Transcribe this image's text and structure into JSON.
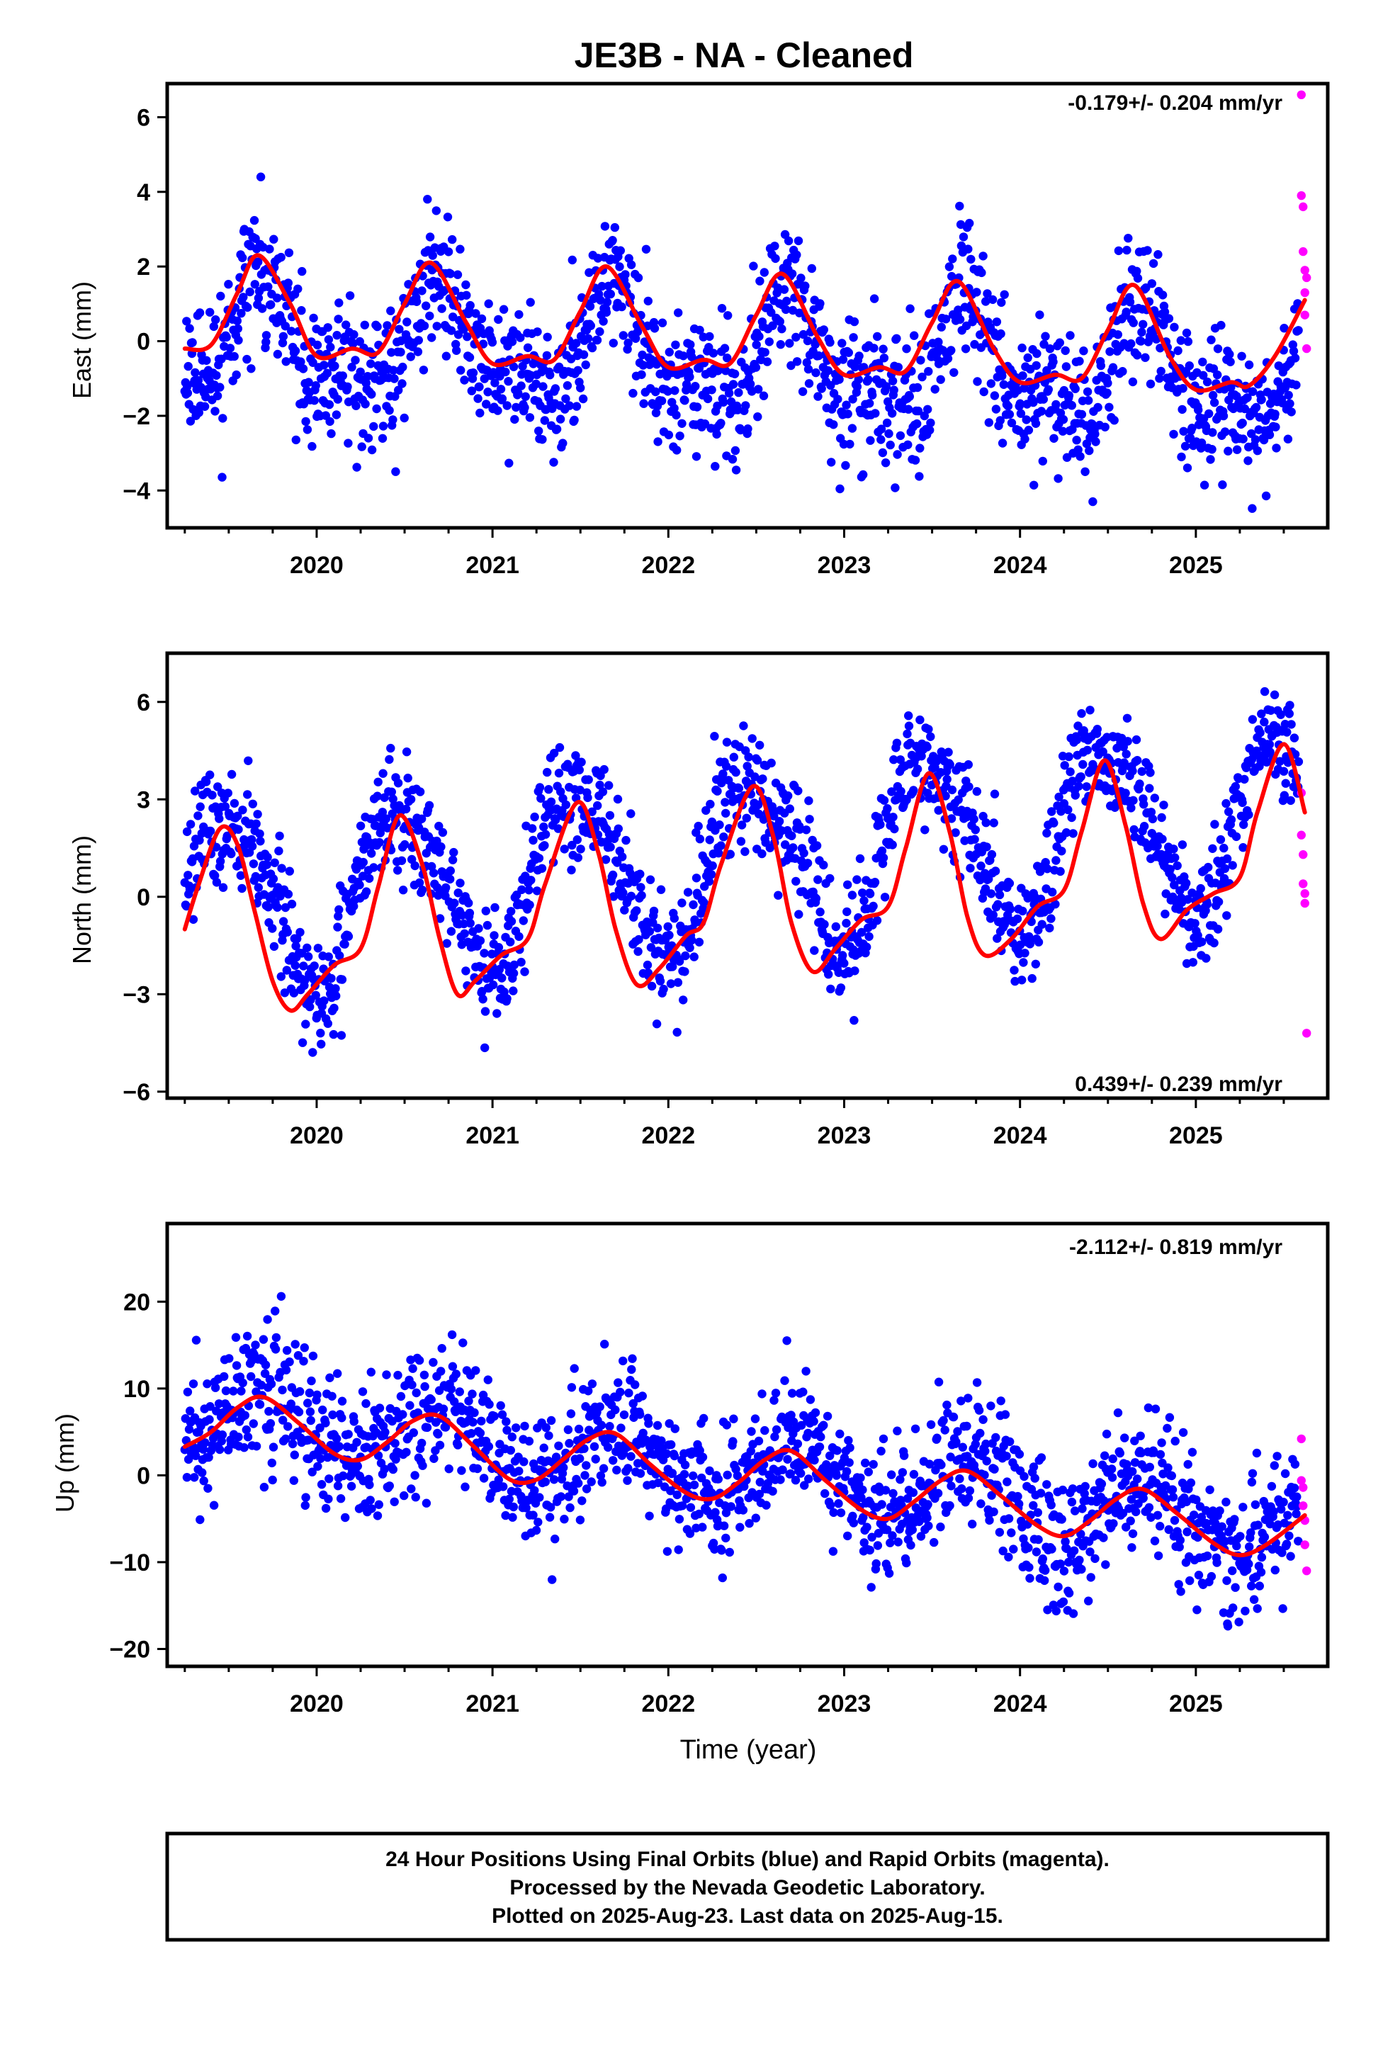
{
  "title": "JE3B  - NA - Cleaned",
  "xlabel": "Time (year)",
  "colors": {
    "final": "#0000ff",
    "rapid": "#ff00ff",
    "fit": "#ff0000",
    "frame": "#000000"
  },
  "caption": {
    "line1": "24 Hour Positions Using Final Orbits (blue) and Rapid Orbits (magenta).",
    "line2": "Processed by the Nevada Geodetic Laboratory.",
    "line3": "Plotted on 2025-Aug-23. Last data on 2025-Aug-15."
  },
  "chart_data": [
    {
      "type": "scatter",
      "component": "East",
      "ylabel": "East (mm)",
      "rate": "-0.179+/- 0.204 mm/yr",
      "rate_position": "top-right",
      "xlim": [
        2019.15,
        2025.75
      ],
      "ylim": [
        -5.0,
        6.9
      ],
      "xticks": [
        2020,
        2021,
        2022,
        2023,
        2024,
        2025
      ],
      "yticks": [
        -4,
        -2,
        0,
        2,
        4,
        6
      ],
      "series": [
        {
          "name": "Final Orbits (blue)",
          "model": {
            "trend": -0.179,
            "bias": 0.1,
            "annual_amp": 1.4,
            "annual_peak": 0.7,
            "semi_amp": 0.7,
            "semi_peak": 0.68,
            "noise": 0.95
          }
        },
        {
          "name": "Rapid Orbits (magenta)",
          "x": [
            2025.6,
            2025.6,
            2025.61,
            2025.61,
            2025.62,
            2025.62,
            2025.62,
            2025.63,
            2025.63
          ],
          "y": [
            6.6,
            3.9,
            3.6,
            2.4,
            1.9,
            1.3,
            0.7,
            1.7,
            -0.2
          ]
        }
      ],
      "fit": [
        [
          2019.25,
          -0.2
        ],
        [
          2019.4,
          -0.1
        ],
        [
          2019.55,
          1.3
        ],
        [
          2019.67,
          2.3
        ],
        [
          2019.85,
          1.0
        ],
        [
          2020.0,
          -0.4
        ],
        [
          2020.2,
          -0.2
        ],
        [
          2020.35,
          -0.3
        ],
        [
          2020.5,
          1.0
        ],
        [
          2020.65,
          2.1
        ],
        [
          2020.85,
          0.5
        ],
        [
          2021.0,
          -0.6
        ],
        [
          2021.2,
          -0.4
        ],
        [
          2021.35,
          -0.5
        ],
        [
          2021.5,
          0.8
        ],
        [
          2021.65,
          2.0
        ],
        [
          2021.85,
          0.4
        ],
        [
          2022.0,
          -0.7
        ],
        [
          2022.2,
          -0.5
        ],
        [
          2022.35,
          -0.6
        ],
        [
          2022.5,
          0.7
        ],
        [
          2022.65,
          1.8
        ],
        [
          2022.85,
          0.1
        ],
        [
          2023.0,
          -0.9
        ],
        [
          2023.2,
          -0.7
        ],
        [
          2023.35,
          -0.8
        ],
        [
          2023.5,
          0.5
        ],
        [
          2023.65,
          1.6
        ],
        [
          2023.85,
          -0.2
        ],
        [
          2024.0,
          -1.1
        ],
        [
          2024.2,
          -0.9
        ],
        [
          2024.35,
          -1.0
        ],
        [
          2024.5,
          0.3
        ],
        [
          2024.65,
          1.5
        ],
        [
          2024.85,
          -0.4
        ],
        [
          2025.0,
          -1.3
        ],
        [
          2025.2,
          -1.1
        ],
        [
          2025.3,
          -1.2
        ],
        [
          2025.45,
          -0.4
        ],
        [
          2025.62,
          1.1
        ]
      ]
    },
    {
      "type": "scatter",
      "component": "North",
      "ylabel": "North (mm)",
      "rate": "0.439+/- 0.239 mm/yr",
      "rate_position": "bottom-right",
      "xlim": [
        2019.15,
        2025.75
      ],
      "ylim": [
        -6.2,
        7.5
      ],
      "xticks": [
        2020,
        2021,
        2022,
        2023,
        2024,
        2025
      ],
      "yticks": [
        -6,
        -3,
        0,
        3,
        6
      ],
      "series": [
        {
          "name": "Final Orbits (blue)",
          "model": {
            "trend": 0.439,
            "bias": -0.3,
            "annual_amp": 2.6,
            "annual_peak": 0.48,
            "semi_amp": 0.5,
            "semi_peak": 0.3,
            "noise": 0.9
          }
        },
        {
          "name": "Rapid Orbits (magenta)",
          "x": [
            2025.6,
            2025.6,
            2025.61,
            2025.61,
            2025.62,
            2025.62,
            2025.63
          ],
          "y": [
            3.2,
            1.9,
            1.3,
            0.4,
            0.1,
            -0.2,
            -4.2
          ]
        }
      ],
      "fit": [
        [
          2019.25,
          -1.0
        ],
        [
          2019.33,
          0.4
        ],
        [
          2019.45,
          2.1
        ],
        [
          2019.55,
          1.6
        ],
        [
          2019.65,
          -0.5
        ],
        [
          2019.75,
          -2.6
        ],
        [
          2019.85,
          -3.5
        ],
        [
          2019.95,
          -3.0
        ],
        [
          2020.1,
          -2.1
        ],
        [
          2020.25,
          -1.6
        ],
        [
          2020.35,
          0.3
        ],
        [
          2020.47,
          2.5
        ],
        [
          2020.6,
          1.0
        ],
        [
          2020.7,
          -1.3
        ],
        [
          2020.8,
          -3.0
        ],
        [
          2020.9,
          -2.6
        ],
        [
          2021.05,
          -1.8
        ],
        [
          2021.2,
          -1.3
        ],
        [
          2021.3,
          0.4
        ],
        [
          2021.48,
          2.9
        ],
        [
          2021.6,
          1.4
        ],
        [
          2021.7,
          -1.0
        ],
        [
          2021.82,
          -2.7
        ],
        [
          2021.95,
          -2.2
        ],
        [
          2022.1,
          -1.2
        ],
        [
          2022.2,
          -0.8
        ],
        [
          2022.3,
          1.0
        ],
        [
          2022.48,
          3.4
        ],
        [
          2022.6,
          1.8
        ],
        [
          2022.7,
          -0.8
        ],
        [
          2022.82,
          -2.3
        ],
        [
          2022.95,
          -1.6
        ],
        [
          2023.1,
          -0.7
        ],
        [
          2023.25,
          -0.3
        ],
        [
          2023.35,
          1.5
        ],
        [
          2023.48,
          3.8
        ],
        [
          2023.6,
          2.0
        ],
        [
          2023.7,
          -0.6
        ],
        [
          2023.8,
          -1.8
        ],
        [
          2023.95,
          -1.3
        ],
        [
          2024.1,
          -0.3
        ],
        [
          2024.25,
          0.2
        ],
        [
          2024.35,
          2.0
        ],
        [
          2024.48,
          4.2
        ],
        [
          2024.6,
          2.2
        ],
        [
          2024.7,
          -0.2
        ],
        [
          2024.8,
          -1.3
        ],
        [
          2024.95,
          -0.4
        ],
        [
          2025.1,
          0.1
        ],
        [
          2025.25,
          0.6
        ],
        [
          2025.35,
          2.6
        ],
        [
          2025.5,
          4.7
        ],
        [
          2025.62,
          2.6
        ]
      ]
    },
    {
      "type": "scatter",
      "component": "Up",
      "ylabel": "Up (mm)",
      "rate": "-2.112+/- 0.819 mm/yr",
      "rate_position": "top-right",
      "xlim": [
        2019.15,
        2025.75
      ],
      "ylim": [
        -22.0,
        29.0
      ],
      "xticks": [
        2020,
        2021,
        2022,
        2023,
        2024,
        2025
      ],
      "yticks": [
        -20,
        -10,
        0,
        10,
        20
      ],
      "series": [
        {
          "name": "Final Orbits (blue)",
          "model": {
            "trend": -2.112,
            "bias": 7.5,
            "annual_amp": 4.0,
            "annual_peak": 0.72,
            "semi_amp": 0.0,
            "semi_peak": 0.0,
            "noise": 3.8
          }
        },
        {
          "name": "Rapid Orbits (magenta)",
          "x": [
            2025.6,
            2025.6,
            2025.61,
            2025.61,
            2025.62,
            2025.62,
            2025.63
          ],
          "y": [
            4.2,
            -0.6,
            -1.4,
            -3.5,
            -5.2,
            -8.0,
            -11.0
          ]
        }
      ],
      "fit": [
        [
          2019.25,
          3.3
        ],
        [
          2019.4,
          5.0
        ],
        [
          2019.55,
          7.8
        ],
        [
          2019.7,
          9.0
        ],
        [
          2019.9,
          6.0
        ],
        [
          2020.1,
          2.5
        ],
        [
          2020.25,
          1.8
        ],
        [
          2020.4,
          3.8
        ],
        [
          2020.55,
          6.3
        ],
        [
          2020.7,
          6.8
        ],
        [
          2020.9,
          3.2
        ],
        [
          2021.1,
          -0.5
        ],
        [
          2021.25,
          -0.5
        ],
        [
          2021.4,
          1.8
        ],
        [
          2021.55,
          4.2
        ],
        [
          2021.7,
          4.8
        ],
        [
          2021.9,
          1.2
        ],
        [
          2022.1,
          -2.0
        ],
        [
          2022.25,
          -2.7
        ],
        [
          2022.4,
          -0.8
        ],
        [
          2022.55,
          1.8
        ],
        [
          2022.7,
          2.8
        ],
        [
          2022.9,
          -0.7
        ],
        [
          2023.1,
          -4.0
        ],
        [
          2023.25,
          -5.0
        ],
        [
          2023.4,
          -3.0
        ],
        [
          2023.55,
          -0.6
        ],
        [
          2023.7,
          0.5
        ],
        [
          2023.9,
          -2.5
        ],
        [
          2024.1,
          -5.8
        ],
        [
          2024.25,
          -7.0
        ],
        [
          2024.4,
          -5.2
        ],
        [
          2024.55,
          -2.7
        ],
        [
          2024.7,
          -1.6
        ],
        [
          2024.9,
          -4.5
        ],
        [
          2025.1,
          -7.8
        ],
        [
          2025.25,
          -9.2
        ],
        [
          2025.4,
          -8.0
        ],
        [
          2025.62,
          -4.6
        ]
      ]
    }
  ]
}
